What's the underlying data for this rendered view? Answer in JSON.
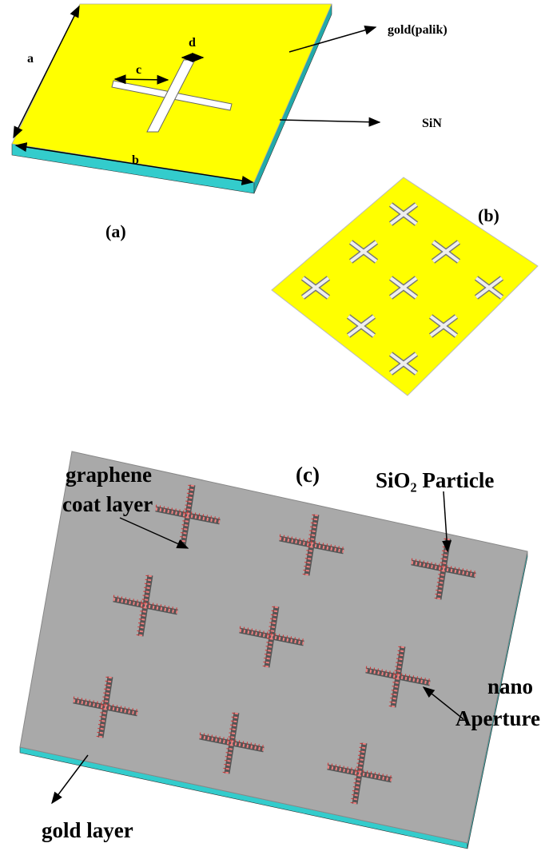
{
  "panels": [
    {
      "label": "(a)",
      "dimensions": [
        "a",
        "b",
        "c",
        "d"
      ],
      "callouts": [
        "gold(palik)",
        "SiN"
      ]
    },
    {
      "label": "(b)"
    },
    {
      "label": "(c)",
      "callouts": [
        [
          "graphene",
          "coat layer"
        ],
        [
          "SiO₂ Particle"
        ],
        [
          "nano",
          "Aperture"
        ],
        [
          "gold layer"
        ]
      ]
    }
  ]
}
